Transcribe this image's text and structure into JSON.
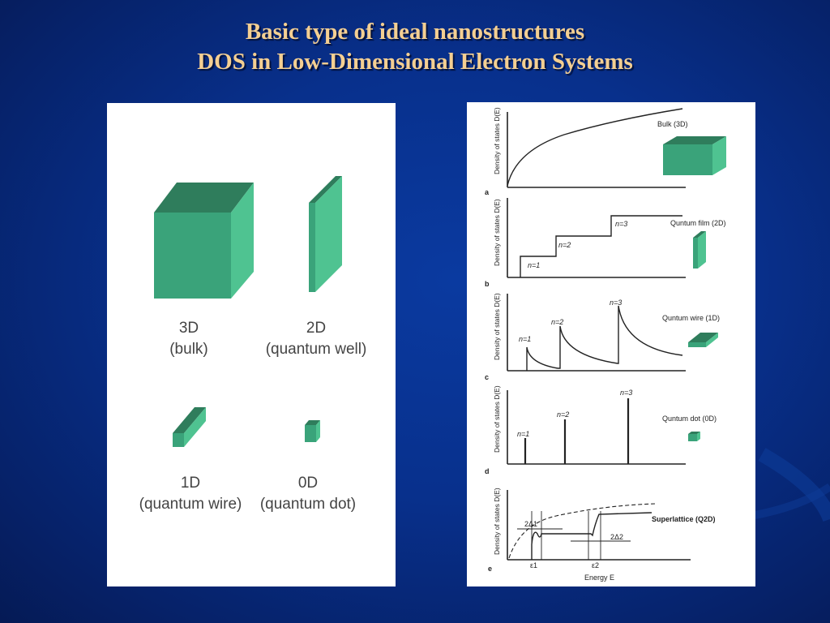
{
  "slide": {
    "title_line1": "Basic type of ideal nanostructures",
    "title_line2": "DOS in Low-Dimensional Electron Systems"
  },
  "left_figure": {
    "items": [
      {
        "dim": "3D",
        "desc": "(bulk)"
      },
      {
        "dim": "2D",
        "desc": "(quantum well)"
      },
      {
        "dim": "1D",
        "desc": "(quantum wire)"
      },
      {
        "dim": "0D",
        "desc": "(quantum dot)"
      }
    ]
  },
  "right_figure": {
    "ylabel": "Density of states D(E)",
    "xlabel": "Energy E",
    "panels": [
      {
        "letter": "a",
        "label": "Bulk (3D)"
      },
      {
        "letter": "b",
        "label": "Quntum film (2D)",
        "levels": [
          "n=1",
          "n=2",
          "n=3"
        ]
      },
      {
        "letter": "c",
        "label": "Quntum wire (1D)",
        "levels": [
          "n=1",
          "n=2",
          "n=3"
        ]
      },
      {
        "letter": "d",
        "label": "Quntum dot (0D)",
        "levels": [
          "n=1",
          "n=2",
          "n=3"
        ]
      },
      {
        "letter": "e",
        "label": "Superlattice (Q2D)",
        "annotations": [
          "2Δ1",
          "2Δ2",
          "ε1",
          "ε2"
        ]
      }
    ]
  },
  "colors": {
    "title": "#f4cf92",
    "box_front": "#3aa37a",
    "box_top": "#2f7d5c",
    "box_side": "#4fc391"
  }
}
